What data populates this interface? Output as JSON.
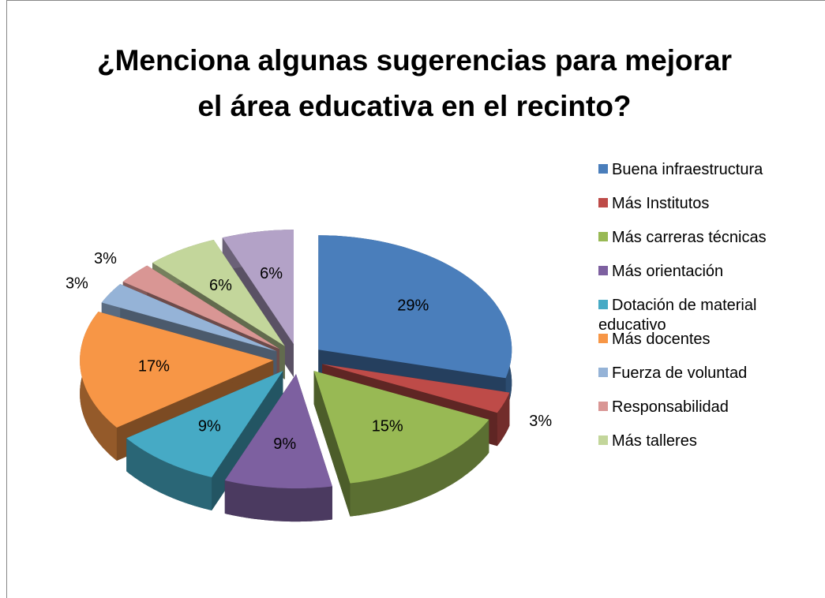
{
  "chart_data": {
    "type": "pie3d",
    "title": "¿Menciona algunas sugerencias para mejorar el área educativa en el recinto?",
    "categories": [
      "Buena infraestructura",
      "Más Institutos",
      "Más carreras técnicas",
      "Más orientación",
      "Dotación de material educativo",
      "Más docentes",
      "Fuerza de voluntad",
      "Responsabilidad",
      "Más talleres",
      null
    ],
    "values": [
      29,
      3,
      15,
      9,
      9,
      17,
      3,
      3,
      6,
      6
    ],
    "value_labels": [
      "29%",
      "3%",
      "15%",
      "9%",
      "9%",
      "17%",
      "3%",
      "3%",
      "6%",
      "6%"
    ],
    "colors": [
      "#4a7ebb",
      "#be4b48",
      "#98b954",
      "#7d60a0",
      "#46aac5",
      "#f79646",
      "#95b3d7",
      "#d99694",
      "#c3d69b",
      "#b3a2c7"
    ],
    "legend": "right"
  }
}
